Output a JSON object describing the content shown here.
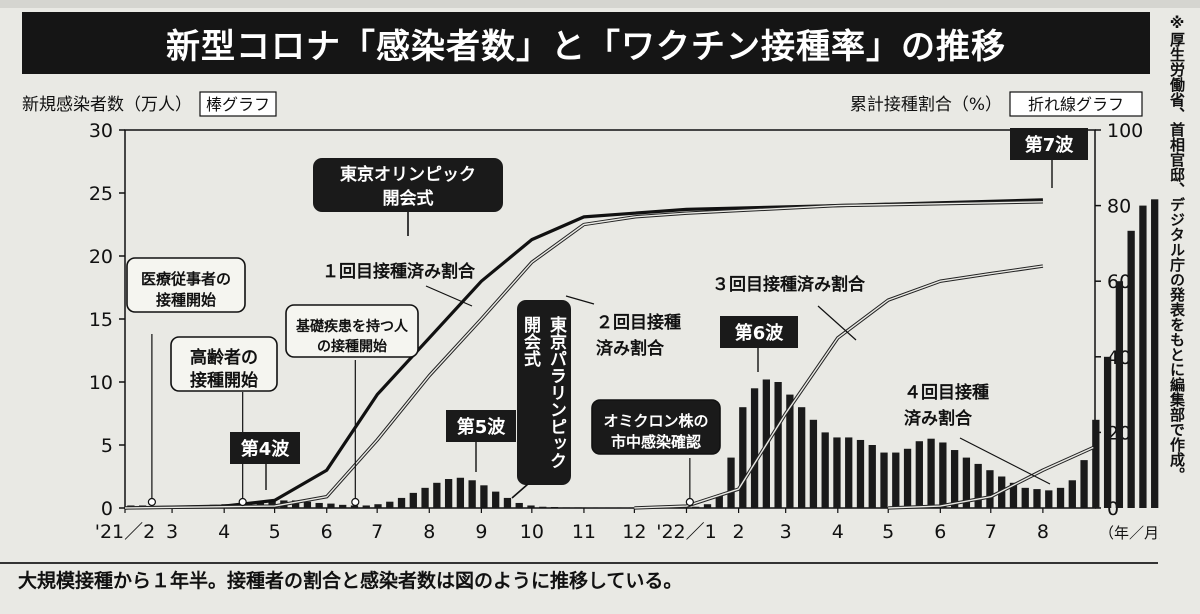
{
  "title": "新型コロナ「感染者数」と「ワクチン接種率」の推移",
  "side_note": "※厚生労働省、首相官邸、デジタル庁の発表をもとに編集部で作成。",
  "caption": "大規模接種から１年半。接種者の割合と感染者数は図のように推移している。",
  "chart_data": {
    "type": "bar+line",
    "left_axis": {
      "label": "新規感染者数（万人）",
      "tag": "棒グラフ",
      "range": [
        0,
        30
      ],
      "ticks": [
        "0",
        "5",
        "10",
        "15",
        "20",
        "25",
        "30"
      ]
    },
    "right_axis": {
      "label": "累計接種割合（%）",
      "tag": "折れ線グラフ",
      "range": [
        0,
        100
      ],
      "ticks": [
        "0",
        "20",
        "40",
        "60",
        "80",
        "100"
      ]
    },
    "x_axis": {
      "unit": "（年／月）",
      "ticks": [
        "'21／2",
        "3",
        "4",
        "5",
        "6",
        "7",
        "8",
        "9",
        "10",
        "11",
        "12",
        "'22／1",
        "2",
        "3",
        "4",
        "5",
        "6",
        "7",
        "8"
      ]
    },
    "bars_weekly": {
      "name": "新規感染者数（万人）",
      "start": "2021-02-01",
      "interval_days": 7,
      "values": [
        0.2,
        0.2,
        0.15,
        0.15,
        0.15,
        0.15,
        0.2,
        0.25,
        0.3,
        0.35,
        0.45,
        0.5,
        0.55,
        0.6,
        0.6,
        0.5,
        0.4,
        0.35,
        0.25,
        0.2,
        0.2,
        0.3,
        0.5,
        0.8,
        1.2,
        1.6,
        2.0,
        2.3,
        2.4,
        2.2,
        1.8,
        1.3,
        0.8,
        0.4,
        0.2,
        0.1,
        0.08,
        0.05,
        0.05,
        0.04,
        0.04,
        0.04,
        0.04,
        0.04,
        0.04,
        0.05,
        0.06,
        0.05,
        0.1,
        0.3,
        1.0,
        4.0,
        8.0,
        9.5,
        10.2,
        10.0,
        9.0,
        8.0,
        7.0,
        6.0,
        5.6,
        5.6,
        5.4,
        5.0,
        4.4,
        4.4,
        4.7,
        5.3,
        5.5,
        5.2,
        4.6,
        4.0,
        3.5,
        3.0,
        2.5,
        2.0,
        1.6,
        1.5,
        1.4,
        1.6,
        2.2,
        3.8,
        7.0,
        12.0,
        18.0,
        22.0,
        24.0,
        24.5,
        24.0
      ]
    },
    "series": [
      {
        "name": "1回目接種済み割合",
        "style": "thick-black",
        "points": [
          [
            "2021-02-01",
            0
          ],
          [
            "2021-04-01",
            0.5
          ],
          [
            "2021-05-01",
            2
          ],
          [
            "2021-06-01",
            10
          ],
          [
            "2021-07-01",
            30
          ],
          [
            "2021-08-01",
            45
          ],
          [
            "2021-09-01",
            60
          ],
          [
            "2021-10-01",
            71
          ],
          [
            "2021-11-01",
            77
          ],
          [
            "2021-12-01",
            78
          ],
          [
            "2022-01-01",
            79
          ],
          [
            "2022-04-01",
            80
          ],
          [
            "2022-08-01",
            81.5
          ]
        ]
      },
      {
        "name": "2回目接種済み割合",
        "style": "thin-double",
        "points": [
          [
            "2021-02-01",
            0
          ],
          [
            "2021-05-01",
            0.5
          ],
          [
            "2021-06-01",
            3
          ],
          [
            "2021-07-01",
            18
          ],
          [
            "2021-08-01",
            35
          ],
          [
            "2021-09-01",
            50
          ],
          [
            "2021-10-01",
            65
          ],
          [
            "2021-11-01",
            75
          ],
          [
            "2021-12-01",
            77
          ],
          [
            "2022-01-01",
            78
          ],
          [
            "2022-04-01",
            80
          ],
          [
            "2022-08-01",
            81
          ]
        ]
      },
      {
        "name": "３回目接種済み割合",
        "style": "thin-double",
        "points": [
          [
            "2021-12-01",
            0
          ],
          [
            "2022-01-01",
            0.5
          ],
          [
            "2022-02-01",
            5
          ],
          [
            "2022-03-01",
            25
          ],
          [
            "2022-04-01",
            45
          ],
          [
            "2022-05-01",
            55
          ],
          [
            "2022-06-01",
            60
          ],
          [
            "2022-07-01",
            62
          ],
          [
            "2022-08-01",
            64
          ]
        ]
      },
      {
        "name": "４回目接種済み割合",
        "style": "thin-double",
        "points": [
          [
            "2022-05-01",
            0
          ],
          [
            "2022-06-01",
            0.5
          ],
          [
            "2022-07-01",
            3
          ],
          [
            "2022-08-01",
            10
          ],
          [
            "2022-08-31",
            16
          ]
        ]
      }
    ],
    "annotations": {
      "tokyo_olympics": "東京オリンピック\n開会式",
      "tokyo_paralympics": "東京パラリンピック\n開会式",
      "medical_staff": "医療従事者の\n接種開始",
      "elderly": "高齢者の\n接種開始",
      "underlying": "基礎疾患を持つ人\nの接種開始",
      "omicron": "オミクロン株の\n市中感染確認",
      "wave4": "第4波",
      "wave5": "第5波",
      "wave6": "第6波",
      "wave7": "第7波",
      "label_dose1": "１回目接種済み割合",
      "label_dose2": "２回目接種\n済み割合",
      "label_dose3": "３回目接種済み割合",
      "label_dose4": "４回目接種\n済み割合"
    }
  }
}
